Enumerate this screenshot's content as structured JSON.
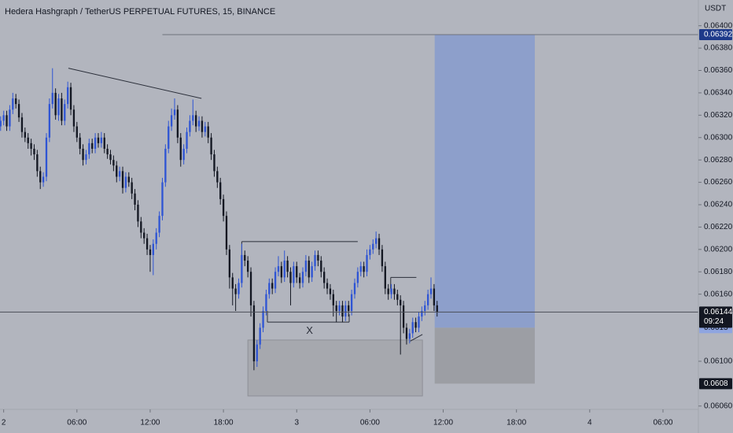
{
  "chart_data": {
    "type": "candlestick",
    "title": "Hedera Hashgraph / TetherUS PERPETUAL FUTURES, 15, BINANCE",
    "currency": "USDT",
    "up_color": "#2f55d4",
    "down_color": "#131722",
    "start": -0.25,
    "interval": 0.25,
    "xlim": [
      -0.3,
      56.9
    ],
    "ylim": [
      0.06057,
      0.06423
    ],
    "xticks": [
      {
        "value": 0,
        "label": "2"
      },
      {
        "value": 6,
        "label": "06:00"
      },
      {
        "value": 12,
        "label": "12:00"
      },
      {
        "value": 18,
        "label": "18:00"
      },
      {
        "value": 24,
        "label": "3"
      },
      {
        "value": 30,
        "label": "06:00"
      },
      {
        "value": 36,
        "label": "12:00"
      },
      {
        "value": 42,
        "label": "18:00"
      },
      {
        "value": 48,
        "label": "4"
      },
      {
        "value": 54,
        "label": "06:00"
      }
    ],
    "yticks": [
      {
        "value": 0.064,
        "label": "0.06400"
      },
      {
        "value": 0.0638,
        "label": "0.06380"
      },
      {
        "value": 0.0636,
        "label": "0.06360"
      },
      {
        "value": 0.0634,
        "label": "0.06340"
      },
      {
        "value": 0.0632,
        "label": "0.06320"
      },
      {
        "value": 0.063,
        "label": "0.06300"
      },
      {
        "value": 0.0628,
        "label": "0.06280"
      },
      {
        "value": 0.0626,
        "label": "0.06260"
      },
      {
        "value": 0.0624,
        "label": "0.06240"
      },
      {
        "value": 0.0622,
        "label": "0.06220"
      },
      {
        "value": 0.062,
        "label": "0.06200"
      },
      {
        "value": 0.0618,
        "label": "0.06180"
      },
      {
        "value": 0.0616,
        "label": "0.06160"
      },
      {
        "value": 0.061,
        "label": "0.06100"
      },
      {
        "value": 0.0606,
        "label": "0.06060"
      }
    ],
    "grid": false,
    "candles": [
      [
        0.0631,
        0.06319,
        0.06306,
        0.06315
      ],
      [
        0.06315,
        0.06324,
        0.06311,
        0.0632
      ],
      [
        0.0632,
        0.06324,
        0.06306,
        0.0631
      ],
      [
        0.0631,
        0.06329,
        0.06306,
        0.06325
      ],
      [
        0.06325,
        0.0634,
        0.06321,
        0.06335
      ],
      [
        0.06335,
        0.06339,
        0.06326,
        0.0633
      ],
      [
        0.0633,
        0.06334,
        0.06314,
        0.06318
      ],
      [
        0.06318,
        0.06322,
        0.063,
        0.06305
      ],
      [
        0.06305,
        0.06309,
        0.06296,
        0.063
      ],
      [
        0.063,
        0.06304,
        0.0629,
        0.06295
      ],
      [
        0.06295,
        0.06299,
        0.06284,
        0.0629
      ],
      [
        0.0629,
        0.06294,
        0.0628,
        0.06285
      ],
      [
        0.06285,
        0.06289,
        0.06265,
        0.0627
      ],
      [
        0.0627,
        0.06274,
        0.06254,
        0.0626
      ],
      [
        0.0626,
        0.06269,
        0.06256,
        0.06265
      ],
      [
        0.06265,
        0.06304,
        0.06261,
        0.063
      ],
      [
        0.063,
        0.06335,
        0.06296,
        0.0633
      ],
      [
        0.0633,
        0.06362,
        0.06326,
        0.0634
      ],
      [
        0.0634,
        0.06344,
        0.06316,
        0.0632
      ],
      [
        0.0632,
        0.06339,
        0.06315,
        0.06335
      ],
      [
        0.06335,
        0.0634,
        0.06311,
        0.06315
      ],
      [
        0.06315,
        0.06334,
        0.06311,
        0.0633
      ],
      [
        0.0633,
        0.0635,
        0.06326,
        0.06345
      ],
      [
        0.06345,
        0.06349,
        0.0632,
        0.06325
      ],
      [
        0.06325,
        0.06329,
        0.06305,
        0.0631
      ],
      [
        0.0631,
        0.06314,
        0.06296,
        0.063
      ],
      [
        0.063,
        0.06304,
        0.06285,
        0.0629
      ],
      [
        0.0629,
        0.06294,
        0.06275,
        0.0628
      ],
      [
        0.0628,
        0.06289,
        0.06276,
        0.06285
      ],
      [
        0.06285,
        0.06299,
        0.06281,
        0.06295
      ],
      [
        0.06295,
        0.06299,
        0.06286,
        0.0629
      ],
      [
        0.0629,
        0.06304,
        0.06286,
        0.063
      ],
      [
        0.063,
        0.06304,
        0.06291,
        0.06295
      ],
      [
        0.06295,
        0.06305,
        0.06291,
        0.063
      ],
      [
        0.063,
        0.06304,
        0.06286,
        0.0629
      ],
      [
        0.0629,
        0.06294,
        0.06281,
        0.06285
      ],
      [
        0.06285,
        0.06289,
        0.06276,
        0.0628
      ],
      [
        0.0628,
        0.06284,
        0.0627,
        0.06275
      ],
      [
        0.06275,
        0.06279,
        0.0626,
        0.06265
      ],
      [
        0.06265,
        0.06274,
        0.06261,
        0.0627
      ],
      [
        0.0627,
        0.06274,
        0.0625,
        0.06255
      ],
      [
        0.06255,
        0.06269,
        0.06251,
        0.06265
      ],
      [
        0.06265,
        0.06269,
        0.06256,
        0.0626
      ],
      [
        0.0626,
        0.06264,
        0.06245,
        0.0625
      ],
      [
        0.0625,
        0.06254,
        0.06235,
        0.0624
      ],
      [
        0.0624,
        0.06244,
        0.0622,
        0.06225
      ],
      [
        0.06225,
        0.06229,
        0.0621,
        0.06215
      ],
      [
        0.06215,
        0.06219,
        0.06205,
        0.0621
      ],
      [
        0.0621,
        0.06214,
        0.06195,
        0.062
      ],
      [
        0.062,
        0.06204,
        0.0618,
        0.06195
      ],
      [
        0.06195,
        0.06209,
        0.06177,
        0.06205
      ],
      [
        0.06205,
        0.06219,
        0.062,
        0.06215
      ],
      [
        0.06215,
        0.06234,
        0.06211,
        0.0623
      ],
      [
        0.0623,
        0.06264,
        0.06226,
        0.0626
      ],
      [
        0.0626,
        0.06294,
        0.06256,
        0.0629
      ],
      [
        0.0629,
        0.06315,
        0.06286,
        0.0631
      ],
      [
        0.0631,
        0.06326,
        0.06306,
        0.0632
      ],
      [
        0.0632,
        0.06335,
        0.06316,
        0.06325
      ],
      [
        0.06325,
        0.06329,
        0.06295,
        0.063
      ],
      [
        0.063,
        0.06304,
        0.06274,
        0.0628
      ],
      [
        0.0628,
        0.06294,
        0.06276,
        0.0629
      ],
      [
        0.0629,
        0.06309,
        0.06286,
        0.06305
      ],
      [
        0.06305,
        0.0632,
        0.06301,
        0.06315
      ],
      [
        0.06315,
        0.06334,
        0.06311,
        0.0632
      ],
      [
        0.0632,
        0.06324,
        0.06305,
        0.0631
      ],
      [
        0.0631,
        0.06319,
        0.06306,
        0.06315
      ],
      [
        0.06315,
        0.06319,
        0.063,
        0.06305
      ],
      [
        0.06305,
        0.06314,
        0.06301,
        0.0631
      ],
      [
        0.0631,
        0.06314,
        0.06295,
        0.063
      ],
      [
        0.063,
        0.06304,
        0.0628,
        0.06285
      ],
      [
        0.06285,
        0.06289,
        0.06265,
        0.0627
      ],
      [
        0.0627,
        0.06274,
        0.06255,
        0.0626
      ],
      [
        0.0626,
        0.06264,
        0.0624,
        0.06245
      ],
      [
        0.06245,
        0.06249,
        0.06225,
        0.0623
      ],
      [
        0.0623,
        0.06234,
        0.06195,
        0.062
      ],
      [
        0.062,
        0.06204,
        0.06165,
        0.06175
      ],
      [
        0.06175,
        0.06179,
        0.0615,
        0.06165
      ],
      [
        0.06165,
        0.06169,
        0.06145,
        0.0616
      ],
      [
        0.0616,
        0.06174,
        0.06156,
        0.0617
      ],
      [
        0.0617,
        0.06205,
        0.06166,
        0.06195
      ],
      [
        0.06195,
        0.06199,
        0.06185,
        0.0619
      ],
      [
        0.0619,
        0.06194,
        0.06175,
        0.0618
      ],
      [
        0.0618,
        0.06184,
        0.0614,
        0.0615
      ],
      [
        0.0615,
        0.06154,
        0.06092,
        0.061
      ],
      [
        0.061,
        0.06119,
        0.06095,
        0.06115
      ],
      [
        0.06115,
        0.06134,
        0.06111,
        0.0613
      ],
      [
        0.0613,
        0.06149,
        0.06126,
        0.06145
      ],
      [
        0.06145,
        0.06164,
        0.06141,
        0.0616
      ],
      [
        0.0616,
        0.06174,
        0.06156,
        0.0617
      ],
      [
        0.0617,
        0.06174,
        0.0616,
        0.06165
      ],
      [
        0.06165,
        0.06184,
        0.06161,
        0.0618
      ],
      [
        0.0618,
        0.06194,
        0.06176,
        0.06185
      ],
      [
        0.06185,
        0.06189,
        0.0617,
        0.06175
      ],
      [
        0.06175,
        0.06199,
        0.06171,
        0.0619
      ],
      [
        0.0619,
        0.06194,
        0.06175,
        0.0618
      ],
      [
        0.0618,
        0.06184,
        0.0615,
        0.0617
      ],
      [
        0.0617,
        0.06189,
        0.06166,
        0.06185
      ],
      [
        0.06185,
        0.06189,
        0.0617,
        0.06175
      ],
      [
        0.06175,
        0.06179,
        0.06165,
        0.0617
      ],
      [
        0.0617,
        0.06184,
        0.06166,
        0.0618
      ],
      [
        0.0618,
        0.06195,
        0.06176,
        0.0619
      ],
      [
        0.0619,
        0.06194,
        0.0617,
        0.06175
      ],
      [
        0.06175,
        0.06189,
        0.06171,
        0.06185
      ],
      [
        0.06185,
        0.06199,
        0.06181,
        0.06195
      ],
      [
        0.06195,
        0.06199,
        0.06185,
        0.0619
      ],
      [
        0.0619,
        0.06194,
        0.06175,
        0.0618
      ],
      [
        0.0618,
        0.06184,
        0.06165,
        0.0617
      ],
      [
        0.0617,
        0.06174,
        0.0616,
        0.06165
      ],
      [
        0.06165,
        0.06169,
        0.06155,
        0.0616
      ],
      [
        0.0616,
        0.06164,
        0.0614,
        0.0615
      ],
      [
        0.0615,
        0.06154,
        0.06135,
        0.06145
      ],
      [
        0.06145,
        0.06154,
        0.06141,
        0.0615
      ],
      [
        0.0615,
        0.06154,
        0.06135,
        0.0614
      ],
      [
        0.0614,
        0.06154,
        0.06136,
        0.0615
      ],
      [
        0.0615,
        0.06154,
        0.0614,
        0.06145
      ],
      [
        0.06145,
        0.06164,
        0.06141,
        0.0616
      ],
      [
        0.0616,
        0.06174,
        0.06156,
        0.0617
      ],
      [
        0.0617,
        0.06184,
        0.06166,
        0.0618
      ],
      [
        0.0618,
        0.06189,
        0.06176,
        0.06185
      ],
      [
        0.06185,
        0.06189,
        0.06175,
        0.0618
      ],
      [
        0.0618,
        0.062,
        0.06176,
        0.06195
      ],
      [
        0.06195,
        0.06204,
        0.06191,
        0.062
      ],
      [
        0.062,
        0.06209,
        0.06196,
        0.06205
      ],
      [
        0.06205,
        0.06216,
        0.06201,
        0.0621
      ],
      [
        0.0621,
        0.06214,
        0.06195,
        0.062
      ],
      [
        0.062,
        0.06204,
        0.0618,
        0.06185
      ],
      [
        0.06185,
        0.06189,
        0.0616,
        0.06165
      ],
      [
        0.06165,
        0.06169,
        0.06155,
        0.0616
      ],
      [
        0.0616,
        0.06169,
        0.06156,
        0.06165
      ],
      [
        0.06165,
        0.06169,
        0.06155,
        0.0616
      ],
      [
        0.0616,
        0.06164,
        0.0615,
        0.06155
      ],
      [
        0.06155,
        0.06159,
        0.06106,
        0.0615
      ],
      [
        0.0615,
        0.06154,
        0.06125,
        0.0613
      ],
      [
        0.0613,
        0.06134,
        0.06115,
        0.0612
      ],
      [
        0.0612,
        0.06129,
        0.06116,
        0.06125
      ],
      [
        0.06125,
        0.06139,
        0.06121,
        0.06135
      ],
      [
        0.06135,
        0.06139,
        0.06126,
        0.0613
      ],
      [
        0.0613,
        0.06144,
        0.06126,
        0.0614
      ],
      [
        0.0614,
        0.06149,
        0.06136,
        0.06145
      ],
      [
        0.06145,
        0.06154,
        0.06141,
        0.0615
      ],
      [
        0.0615,
        0.06164,
        0.06146,
        0.0616
      ],
      [
        0.0616,
        0.06175,
        0.06156,
        0.06165
      ],
      [
        0.06165,
        0.06169,
        0.06145,
        0.0615
      ],
      [
        0.0615,
        0.06154,
        0.0614,
        0.06144
      ]
    ],
    "countdown": "09:24",
    "position": {
      "start": 35.3,
      "end": 43.5,
      "target": 0.06392,
      "entry": 0.0613,
      "stop": 0.0608
    },
    "box": {
      "x": [
        20.0,
        34.3
      ],
      "y": [
        0.06119,
        0.06069
      ]
    },
    "trendlines": [
      {
        "x": [
          5.3,
          16.2
        ],
        "y": [
          0.06362,
          0.06335
        ]
      },
      {
        "x": [
          13.0,
          56.9
        ],
        "y": [
          0.06392,
          0.06392
        ]
      },
      {
        "x": [
          19.5,
          29.0
        ],
        "y": [
          0.06207,
          0.06207
        ]
      },
      {
        "x": [
          19.5,
          19.5
        ],
        "y": [
          0.06207,
          0.0619
        ]
      },
      {
        "x": [
          21.6,
          28.3
        ],
        "y": [
          0.06135,
          0.06135
        ]
      },
      {
        "x": [
          21.6,
          21.6
        ],
        "y": [
          0.06135,
          0.06145
        ]
      },
      {
        "x": [
          28.3,
          28.3
        ],
        "y": [
          0.06135,
          0.06142
        ]
      },
      {
        "x": [
          31.7,
          33.8
        ],
        "y": [
          0.06175,
          0.06175
        ]
      },
      {
        "x": [
          31.7,
          31.7
        ],
        "y": [
          0.06175,
          0.06162
        ]
      },
      {
        "x": [
          33.3,
          34.3
        ],
        "y": [
          0.06118,
          0.06124
        ]
      }
    ],
    "annotations": [
      {
        "text": "X",
        "x": 25.05,
        "y": 0.06127
      }
    ]
  }
}
